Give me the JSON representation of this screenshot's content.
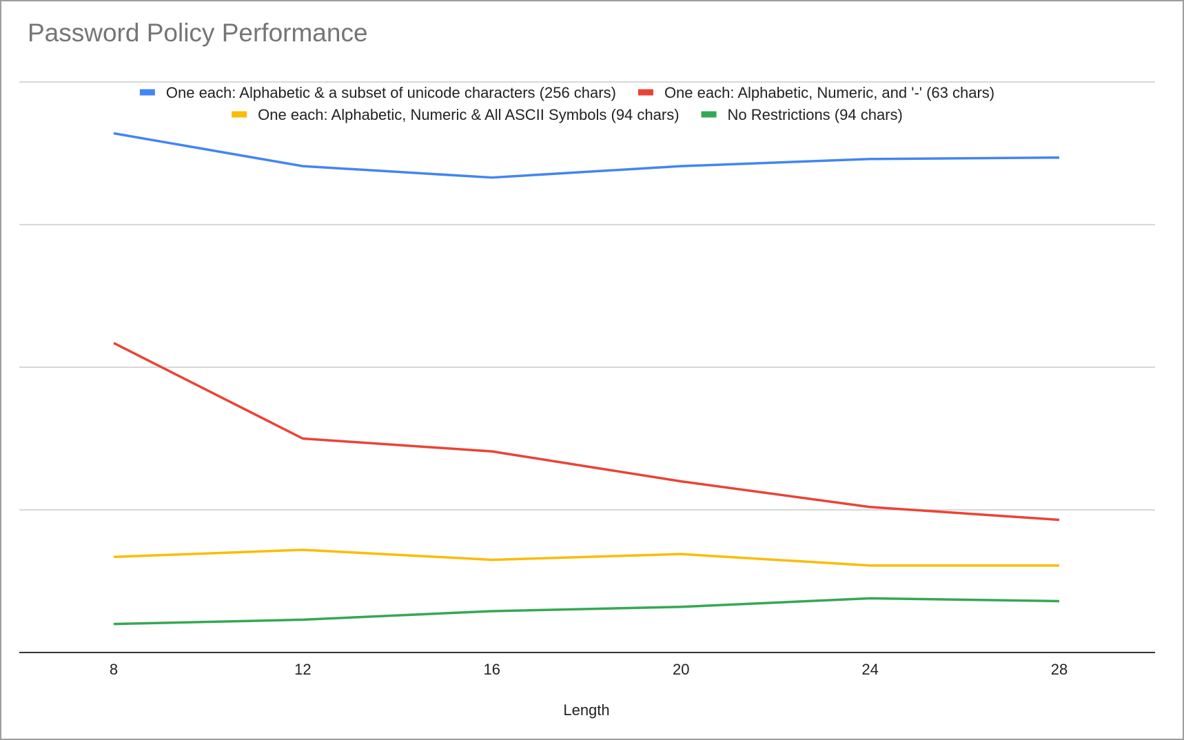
{
  "chart_data": {
    "type": "line",
    "title": "Password Policy Performance",
    "xlabel": "Length",
    "ylabel": "",
    "x": [
      8,
      12,
      16,
      20,
      24,
      28
    ],
    "ylim": [
      0,
      4
    ],
    "y_gridlines": [
      0,
      1,
      2,
      3,
      4
    ],
    "y_tick_labels_shown": false,
    "grid": true,
    "legend_position": "top",
    "series": [
      {
        "name": "One each: Alphabetic & a subset of unicode characters (256 chars)",
        "color": "#4285f4",
        "values": [
          3.64,
          3.41,
          3.33,
          3.41,
          3.46,
          3.47
        ]
      },
      {
        "name": "One each: Alphabetic, Numeric, and '-' (63 chars)",
        "color": "#ea4335",
        "values": [
          2.17,
          1.5,
          1.41,
          1.2,
          1.02,
          0.93
        ]
      },
      {
        "name": "One each: Alphabetic, Numeric & All ASCII Symbols (94 chars)",
        "color": "#fbbc04",
        "values": [
          0.67,
          0.72,
          0.65,
          0.69,
          0.61,
          0.61
        ]
      },
      {
        "name": "No Restrictions (94 chars)",
        "color": "#34a853",
        "values": [
          0.2,
          0.23,
          0.29,
          0.32,
          0.38,
          0.36
        ]
      }
    ]
  }
}
